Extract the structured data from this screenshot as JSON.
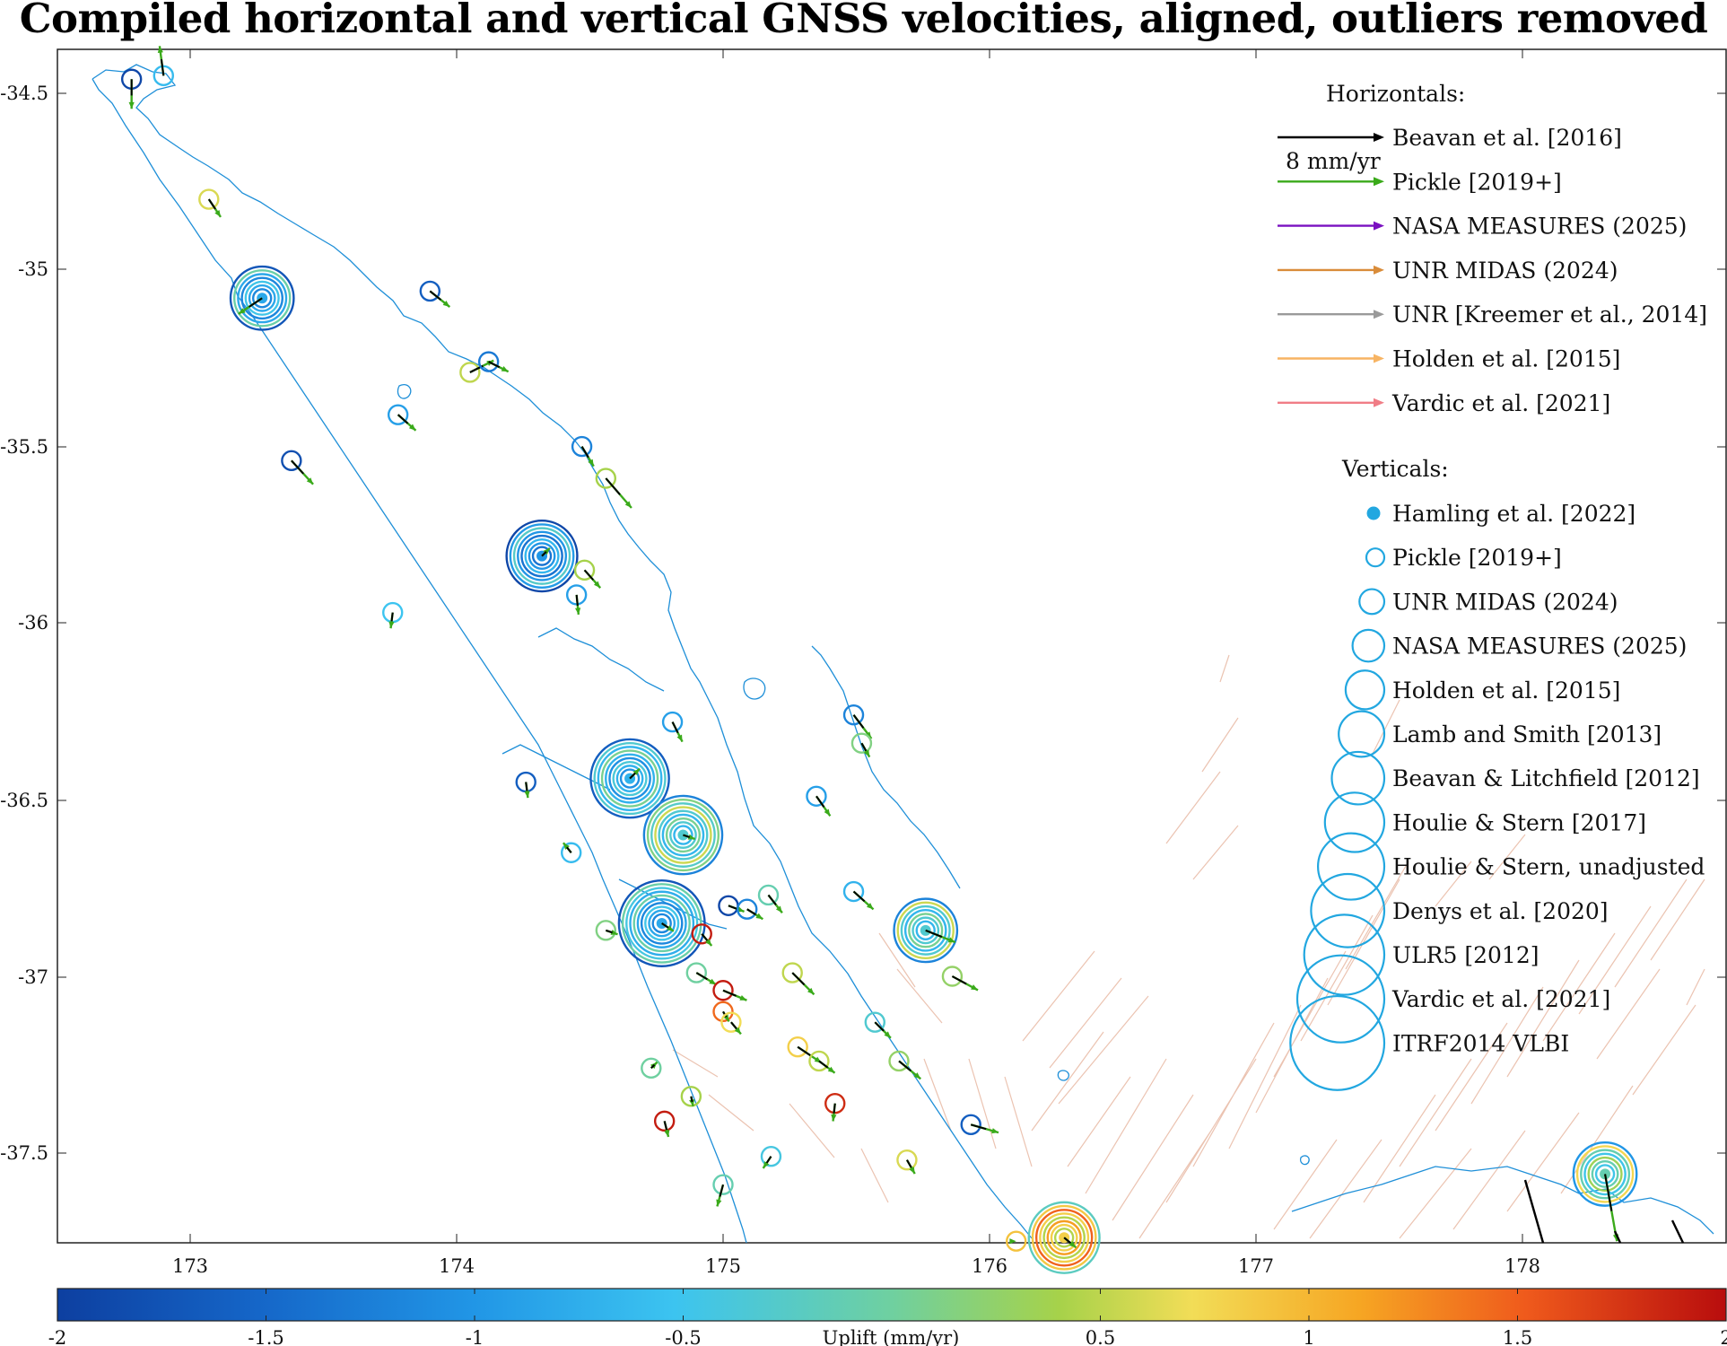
{
  "title": "Compiled horizontal and vertical GNSS velocities, aligned, outliers removed",
  "axes": {
    "x_ticks": [
      "173",
      "174",
      "175",
      "176",
      "177",
      "178"
    ],
    "y_ticks": [
      "-34.5",
      "-35",
      "-35.5",
      "-36",
      "-36.5",
      "-37",
      "-37.5"
    ]
  },
  "legend": {
    "horizontals_heading": "Horizontals:",
    "scale_label": "8 mm/yr",
    "horizontals": [
      {
        "label": "Beavan et al. [2016]",
        "color": "#000000"
      },
      {
        "label": "Pickle [2019+]",
        "color": "#3aaa1a"
      },
      {
        "label": "NASA MEASURES (2025)",
        "color": "#7a10c0"
      },
      {
        "label": "UNR MIDAS (2024)",
        "color": "#d98c3a"
      },
      {
        "label": "UNR [Kreemer et al., 2014]",
        "color": "#9a9a9a"
      },
      {
        "label": "Holden et al. [2015]",
        "color": "#f7b463"
      },
      {
        "label": "Vardic et al. [2021]",
        "color": "#f07d86"
      }
    ],
    "verticals_heading": "Verticals:",
    "verticals": [
      {
        "label": "Hamling et al. [2022]"
      },
      {
        "label": "Pickle [2019+]"
      },
      {
        "label": "UNR MIDAS (2024)"
      },
      {
        "label": "NASA MEASURES (2025)"
      },
      {
        "label": "Holden et al. [2015]"
      },
      {
        "label": "Lamb and Smith [2013]"
      },
      {
        "label": "Beavan & Litchfield [2012]"
      },
      {
        "label": "Houlie & Stern [2017]"
      },
      {
        "label": "Houlie & Stern, unadjusted"
      },
      {
        "label": "Denys et al. [2020]"
      },
      {
        "label": "ULR5 [2012]"
      },
      {
        "label": "Vardic et al. [2021]"
      },
      {
        "label": "ITRF2014 VLBI"
      }
    ],
    "vertical_marker_color": "#22a7e0"
  },
  "colorbar": {
    "label": "Uplift (mm/yr)",
    "ticks": [
      "-2",
      "-1.5",
      "-1",
      "-0.5",
      "0.5",
      "1",
      "1.5",
      "2"
    ],
    "range": [
      -2,
      2
    ]
  },
  "colors": {
    "coastline": "#1e8fd8",
    "faults": "#e8b9a3"
  },
  "stations": [
    {
      "lon": 172.78,
      "lat": -34.46,
      "up": -1.9,
      "n": 1,
      "ve": 0.0,
      "vn": -1.5
    },
    {
      "lon": 172.9,
      "lat": -34.45,
      "up": -0.6,
      "n": 1,
      "ve": -0.2,
      "vn": 1.5
    },
    {
      "lon": 173.07,
      "lat": -34.8,
      "up": 0.5,
      "n": 1,
      "ve": 0.6,
      "vn": -0.9
    },
    {
      "lon": 173.27,
      "lat": -35.08,
      "up": -0.8,
      "n": 7,
      "ve": -1.2,
      "vn": -0.8
    },
    {
      "lon": 173.9,
      "lat": -35.06,
      "up": -1.6,
      "n": 1,
      "ve": 1.0,
      "vn": -0.8
    },
    {
      "lon": 174.05,
      "lat": -35.29,
      "up": 0.4,
      "n": 1,
      "ve": 1.2,
      "vn": 0.6
    },
    {
      "lon": 174.12,
      "lat": -35.26,
      "up": -1.3,
      "n": 1,
      "ve": 1.0,
      "vn": -0.5
    },
    {
      "lon": 173.78,
      "lat": -35.41,
      "up": -0.9,
      "n": 1,
      "ve": 0.9,
      "vn": -0.8
    },
    {
      "lon": 173.38,
      "lat": -35.54,
      "up": -1.8,
      "n": 1,
      "ve": 1.1,
      "vn": -1.2
    },
    {
      "lon": 174.47,
      "lat": -35.5,
      "up": -1.2,
      "n": 1,
      "ve": 0.6,
      "vn": -1.0
    },
    {
      "lon": 174.56,
      "lat": -35.59,
      "up": 0.3,
      "n": 1,
      "ve": 1.3,
      "vn": -1.5
    },
    {
      "lon": 174.32,
      "lat": -35.81,
      "up": -1.0,
      "n": 8,
      "ve": 0.4,
      "vn": 0.4
    },
    {
      "lon": 174.48,
      "lat": -35.85,
      "up": 0.3,
      "n": 1,
      "ve": 0.8,
      "vn": -0.9
    },
    {
      "lon": 174.45,
      "lat": -35.92,
      "up": -0.9,
      "n": 1,
      "ve": 0.1,
      "vn": -1.0
    },
    {
      "lon": 173.76,
      "lat": -35.97,
      "up": -0.5,
      "n": 1,
      "ve": -0.1,
      "vn": -0.8
    },
    {
      "lon": 174.81,
      "lat": -36.28,
      "up": -0.9,
      "n": 1,
      "ve": 0.5,
      "vn": -1.0
    },
    {
      "lon": 175.49,
      "lat": -36.26,
      "up": -1.2,
      "n": 1,
      "ve": 0.9,
      "vn": -1.2
    },
    {
      "lon": 175.52,
      "lat": -36.34,
      "up": 0.1,
      "n": 1,
      "ve": 0.4,
      "vn": -0.7
    },
    {
      "lon": 174.26,
      "lat": -36.45,
      "up": -1.6,
      "n": 1,
      "ve": 0.1,
      "vn": -0.8
    },
    {
      "lon": 174.65,
      "lat": -36.44,
      "up": -0.7,
      "n": 9,
      "ve": 0.5,
      "vn": 0.5
    },
    {
      "lon": 174.85,
      "lat": -36.6,
      "up": -0.3,
      "n": 9,
      "ve": 0.6,
      "vn": -0.2
    },
    {
      "lon": 175.35,
      "lat": -36.49,
      "up": -0.9,
      "n": 1,
      "ve": 0.7,
      "vn": -1.0
    },
    {
      "lon": 174.43,
      "lat": -36.65,
      "up": -0.6,
      "n": 1,
      "ve": -0.4,
      "vn": 0.5
    },
    {
      "lon": 174.77,
      "lat": -36.85,
      "up": -0.8,
      "n": 10,
      "ve": 0.6,
      "vn": -0.4
    },
    {
      "lon": 175.02,
      "lat": -36.8,
      "up": -1.9,
      "n": 1,
      "ve": 0.8,
      "vn": -0.3
    },
    {
      "lon": 175.09,
      "lat": -36.81,
      "up": -1.2,
      "n": 1,
      "ve": 0.8,
      "vn": -0.5
    },
    {
      "lon": 175.17,
      "lat": -36.77,
      "up": -0.1,
      "n": 1,
      "ve": 0.7,
      "vn": -0.9
    },
    {
      "lon": 174.56,
      "lat": -36.87,
      "up": 0.1,
      "n": 1,
      "ve": 0.6,
      "vn": -0.2
    },
    {
      "lon": 174.92,
      "lat": -36.88,
      "up": 1.9,
      "n": 1,
      "ve": 0.5,
      "vn": -0.6
    },
    {
      "lon": 175.76,
      "lat": -36.87,
      "up": -0.3,
      "n": 7,
      "ve": 1.5,
      "vn": -0.6
    },
    {
      "lon": 175.49,
      "lat": -36.76,
      "up": -0.7,
      "n": 1,
      "ve": 1.0,
      "vn": -0.9
    },
    {
      "lon": 175.86,
      "lat": -37.0,
      "up": 0.2,
      "n": 1,
      "ve": 1.3,
      "vn": -0.7
    },
    {
      "lon": 174.9,
      "lat": -36.99,
      "up": 0.0,
      "n": 1,
      "ve": 1.0,
      "vn": -0.6
    },
    {
      "lon": 175.0,
      "lat": -37.04,
      "up": 1.9,
      "n": 1,
      "ve": 1.2,
      "vn": -0.5
    },
    {
      "lon": 175.0,
      "lat": -37.1,
      "up": 1.4,
      "n": 1,
      "ve": 0.3,
      "vn": -0.5
    },
    {
      "lon": 175.03,
      "lat": -37.13,
      "up": 0.6,
      "n": 1,
      "ve": 0.5,
      "vn": -0.6
    },
    {
      "lon": 175.26,
      "lat": -36.99,
      "up": 0.4,
      "n": 1,
      "ve": 1.1,
      "vn": -1.1
    },
    {
      "lon": 175.57,
      "lat": -37.13,
      "up": -0.3,
      "n": 1,
      "ve": 0.8,
      "vn": -0.8
    },
    {
      "lon": 175.28,
      "lat": -37.2,
      "up": 0.7,
      "n": 1,
      "ve": 1.2,
      "vn": -0.8
    },
    {
      "lon": 175.36,
      "lat": -37.24,
      "up": 0.4,
      "n": 1,
      "ve": 0.8,
      "vn": -0.6
    },
    {
      "lon": 174.73,
      "lat": -37.26,
      "up": 0.0,
      "n": 1,
      "ve": 0.3,
      "vn": 0.3
    },
    {
      "lon": 175.66,
      "lat": -37.24,
      "up": 0.2,
      "n": 1,
      "ve": 1.1,
      "vn": -0.9
    },
    {
      "lon": 174.88,
      "lat": -37.34,
      "up": 0.3,
      "n": 1,
      "ve": 0.1,
      "vn": -0.5
    },
    {
      "lon": 175.42,
      "lat": -37.36,
      "up": 1.8,
      "n": 1,
      "ve": -0.1,
      "vn": -0.9
    },
    {
      "lon": 174.78,
      "lat": -37.41,
      "up": 1.9,
      "n": 1,
      "ve": 0.2,
      "vn": -0.8
    },
    {
      "lon": 175.93,
      "lat": -37.42,
      "up": -1.6,
      "n": 1,
      "ve": 1.4,
      "vn": -0.4
    },
    {
      "lon": 175.69,
      "lat": -37.52,
      "up": 0.5,
      "n": 1,
      "ve": 0.4,
      "vn": -0.7
    },
    {
      "lon": 175.18,
      "lat": -37.51,
      "up": -0.4,
      "n": 1,
      "ve": -0.4,
      "vn": -0.6
    },
    {
      "lon": 175.0,
      "lat": -37.59,
      "up": -0.1,
      "n": 1,
      "ve": -0.3,
      "vn": -1.1
    },
    {
      "lon": 176.28,
      "lat": -37.74,
      "up": 0.7,
      "n": 8,
      "ve": 0.6,
      "vn": -0.5
    },
    {
      "lon": 176.1,
      "lat": -37.75,
      "up": 0.8,
      "n": 1,
      "ve": 0.0,
      "vn": 0.0
    },
    {
      "lon": 178.31,
      "lat": -37.56,
      "up": -0.1,
      "n": 7,
      "ve": 0.6,
      "vn": -3.4
    }
  ]
}
